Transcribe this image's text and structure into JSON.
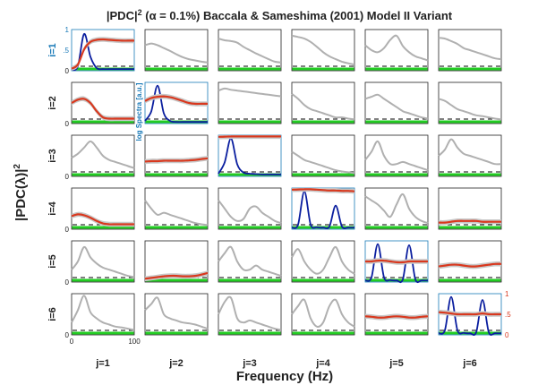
{
  "chart_data": {
    "type": "line",
    "title_main": "|PDC|",
    "title_sup": "2",
    "title_rest": " (α = 0.1%) Baccala & Sameshima (2001) Model II Variant",
    "ylabel": "|PDC(λ)|",
    "ylabel_sup": "2",
    "xlabel": "Frequency (Hz)",
    "row_labels": [
      "i=1",
      "i=2",
      "i=3",
      "i=4",
      "i=5",
      "i=6"
    ],
    "col_labels": [
      "j=1",
      "j=2",
      "j=3",
      "j=4",
      "j=5",
      "j=6"
    ],
    "diag_ylabel": "log Spectra [a.u.]",
    "xlim": [
      0,
      100
    ],
    "ylim": [
      0,
      1
    ],
    "x_ticks": [
      "0",
      "100"
    ],
    "left_y_ticks": [
      "0",
      ".5",
      "1"
    ],
    "right_y_ticks": [
      "0",
      ".5",
      "1"
    ],
    "colors": {
      "pdc": "#d9381e",
      "ci": "#c8c8c8",
      "coherence": "#b0b0b0",
      "spectrum": "#0a1e9f",
      "threshold": "#000000",
      "not_significant": "#22cc22",
      "diag_axis": "#1a7ab8",
      "right_axis": "#d9381e"
    },
    "x": [
      0,
      10,
      20,
      30,
      40,
      50,
      60,
      70,
      80,
      90,
      100
    ],
    "pdc_grid": [
      [
        [
          0.05,
          0.15,
          0.52,
          0.7,
          0.75,
          0.76,
          0.75,
          0.74,
          0.73,
          0.73,
          0.73
        ],
        [
          0.62,
          0.66,
          0.62,
          0.55,
          0.48,
          0.4,
          0.33,
          0.28,
          0.25,
          0.22,
          0.2
        ],
        [
          0.78,
          0.74,
          0.72,
          0.68,
          0.58,
          0.5,
          0.42,
          0.35,
          0.28,
          0.22,
          0.2
        ],
        [
          0.85,
          0.82,
          0.78,
          0.7,
          0.58,
          0.45,
          0.35,
          0.28,
          0.22,
          0.18,
          0.15
        ],
        [
          0.62,
          0.5,
          0.45,
          0.55,
          0.75,
          0.85,
          0.6,
          0.45,
          0.35,
          0.3,
          0.25
        ],
        [
          0.8,
          0.78,
          0.72,
          0.65,
          0.55,
          0.5,
          0.45,
          0.4,
          0.35,
          0.3,
          0.28
        ]
      ],
      [
        [
          0.5,
          0.58,
          0.6,
          0.5,
          0.3,
          0.15,
          0.12,
          0.12,
          0.12,
          0.12,
          0.12
        ],
        [
          0.55,
          0.62,
          0.65,
          0.66,
          0.64,
          0.6,
          0.55,
          0.5,
          0.48,
          0.48,
          0.48
        ],
        [
          0.8,
          0.85,
          0.82,
          0.8,
          0.78,
          0.76,
          0.74,
          0.72,
          0.7,
          0.68,
          0.66
        ],
        [
          0.72,
          0.6,
          0.45,
          0.35,
          0.3,
          0.25,
          0.2,
          0.15,
          0.15,
          0.12,
          0.1
        ],
        [
          0.6,
          0.65,
          0.7,
          0.6,
          0.5,
          0.4,
          0.3,
          0.25,
          0.2,
          0.15,
          0.12
        ],
        [
          0.6,
          0.55,
          0.45,
          0.35,
          0.3,
          0.25,
          0.2,
          0.18,
          0.15,
          0.12,
          0.1
        ]
      ],
      [
        [
          0.45,
          0.55,
          0.7,
          0.85,
          0.7,
          0.5,
          0.4,
          0.35,
          0.3,
          0.25,
          0.2
        ],
        [
          0.36,
          0.37,
          0.37,
          0.38,
          0.38,
          0.38,
          0.38,
          0.39,
          0.4,
          0.42,
          0.44
        ],
        [
          0.96,
          0.965,
          0.97,
          0.97,
          0.97,
          0.97,
          0.97,
          0.97,
          0.97,
          0.97,
          0.97
        ],
        [
          0.6,
          0.5,
          0.4,
          0.35,
          0.3,
          0.25,
          0.2,
          0.15,
          0.12,
          0.1,
          0.08
        ],
        [
          0.4,
          0.6,
          0.85,
          0.5,
          0.3,
          0.3,
          0.35,
          0.3,
          0.25,
          0.2,
          0.15
        ],
        [
          0.5,
          0.65,
          0.9,
          0.7,
          0.55,
          0.5,
          0.45,
          0.4,
          0.35,
          0.3,
          0.3
        ]
      ],
      [
        [
          0.32,
          0.36,
          0.34,
          0.28,
          0.2,
          0.14,
          0.12,
          0.12,
          0.12,
          0.12,
          0.12
        ],
        [
          0.7,
          0.5,
          0.35,
          0.4,
          0.35,
          0.3,
          0.25,
          0.2,
          0.15,
          0.12,
          0.1
        ],
        [
          0.7,
          0.5,
          0.3,
          0.2,
          0.25,
          0.5,
          0.55,
          0.4,
          0.3,
          0.2,
          0.15
        ],
        [
          0.96,
          0.965,
          0.97,
          0.97,
          0.96,
          0.95,
          0.94,
          0.94,
          0.93,
          0.93,
          0.92
        ],
        [
          0.8,
          0.7,
          0.6,
          0.45,
          0.3,
          0.6,
          0.85,
          0.5,
          0.3,
          0.2,
          0.15
        ],
        [
          0.16,
          0.16,
          0.18,
          0.2,
          0.2,
          0.2,
          0.2,
          0.18,
          0.18,
          0.18,
          0.18
        ]
      ],
      [
        [
          0.3,
          0.5,
          0.85,
          0.6,
          0.45,
          0.35,
          0.3,
          0.25,
          0.2,
          0.15,
          0.12
        ],
        [
          0.08,
          0.1,
          0.12,
          0.14,
          0.15,
          0.15,
          0.14,
          0.14,
          0.15,
          0.18,
          0.22
        ],
        [
          0.5,
          0.7,
          0.85,
          0.5,
          0.3,
          0.3,
          0.4,
          0.3,
          0.25,
          0.2,
          0.15
        ],
        [
          0.6,
          0.8,
          0.5,
          0.3,
          0.2,
          0.3,
          0.6,
          0.85,
          0.5,
          0.3,
          0.2
        ],
        [
          0.5,
          0.5,
          0.52,
          0.52,
          0.5,
          0.48,
          0.48,
          0.5,
          0.5,
          0.5,
          0.5
        ],
        [
          0.38,
          0.4,
          0.42,
          0.42,
          0.4,
          0.38,
          0.38,
          0.4,
          0.42,
          0.44,
          0.44
        ]
      ],
      [
        [
          0.3,
          0.6,
          0.95,
          0.55,
          0.4,
          0.3,
          0.25,
          0.2,
          0.18,
          0.15,
          0.12
        ],
        [
          0.6,
          0.75,
          0.9,
          0.5,
          0.4,
          0.35,
          0.3,
          0.28,
          0.25,
          0.2,
          0.15
        ],
        [
          0.5,
          0.8,
          0.9,
          0.4,
          0.3,
          0.35,
          0.3,
          0.25,
          0.2,
          0.15,
          0.12
        ],
        [
          0.5,
          0.7,
          0.85,
          0.4,
          0.2,
          0.3,
          0.7,
          0.85,
          0.5,
          0.3,
          0.2
        ],
        [
          0.45,
          0.44,
          0.42,
          0.42,
          0.44,
          0.45,
          0.44,
          0.42,
          0.42,
          0.44,
          0.45
        ],
        [
          0.55,
          0.54,
          0.52,
          0.5,
          0.5,
          0.5,
          0.5,
          0.52,
          0.5,
          0.5,
          0.5
        ]
      ]
    ],
    "pdc_shown": [
      [
        true,
        false,
        false,
        false,
        false,
        false
      ],
      [
        true,
        true,
        false,
        false,
        false,
        false
      ],
      [
        false,
        true,
        true,
        false,
        false,
        false
      ],
      [
        true,
        false,
        false,
        true,
        false,
        true
      ],
      [
        false,
        true,
        false,
        false,
        true,
        true
      ],
      [
        false,
        false,
        false,
        false,
        true,
        true
      ]
    ],
    "spectra": [
      [
        0.0,
        0.1,
        0.95,
        0.35,
        0.05,
        0.02,
        0.02,
        0.02,
        0.02,
        0.02,
        0.02
      ],
      [
        0.05,
        0.3,
        0.98,
        0.25,
        0.05,
        0.02,
        0.02,
        0.02,
        0.02,
        0.02,
        0.02
      ],
      [
        0.05,
        0.35,
        0.98,
        0.3,
        0.08,
        0.05,
        0.04,
        0.03,
        0.03,
        0.03,
        0.03
      ],
      [
        0.02,
        0.1,
        0.98,
        0.1,
        0.03,
        0.02,
        0.05,
        0.6,
        0.05,
        0.02,
        0.02
      ],
      [
        0.02,
        0.1,
        0.98,
        0.1,
        0.03,
        0.02,
        0.05,
        0.95,
        0.05,
        0.02,
        0.02
      ],
      [
        0.02,
        0.1,
        0.98,
        0.1,
        0.03,
        0.02,
        0.05,
        0.9,
        0.05,
        0.02,
        0.02
      ]
    ]
  }
}
